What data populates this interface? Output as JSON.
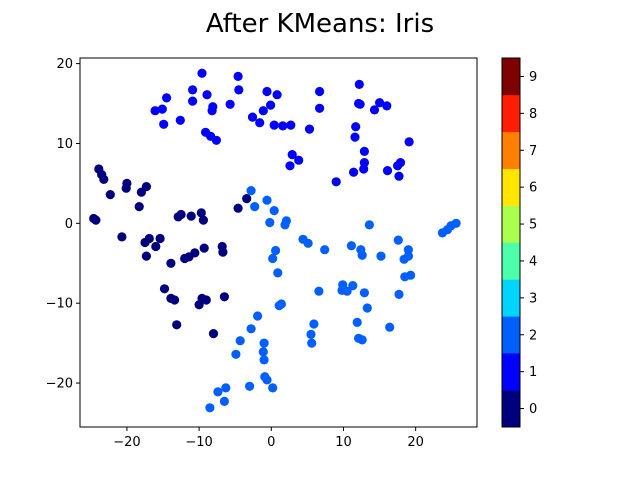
{
  "chart_data": {
    "type": "scatter",
    "title": "After KMeans: Iris",
    "xlabel": "",
    "ylabel": "",
    "xlim": [
      -26.5,
      28.5
    ],
    "ylim": [
      -25.5,
      20.7
    ],
    "xticks": [
      -20,
      -10,
      0,
      10,
      20
    ],
    "yticks": [
      -20,
      -10,
      0,
      10,
      20
    ],
    "grid": false,
    "colormap": "jet (discrete, 10 levels)",
    "colorbar": {
      "ticks": [
        0,
        1,
        2,
        3,
        4,
        5,
        6,
        7,
        8,
        9
      ],
      "colors": [
        "#00007f",
        "#0000ff",
        "#0060ff",
        "#00d4ff",
        "#4cffaa",
        "#aaff4c",
        "#ffe500",
        "#ff7f00",
        "#ff1f00",
        "#7f0000"
      ]
    },
    "points": [
      {
        "x": -24.6,
        "y": 0.6,
        "c": 0
      },
      {
        "x": -24.3,
        "y": 0.4,
        "c": 0
      },
      {
        "x": -23.9,
        "y": 6.8,
        "c": 0
      },
      {
        "x": -23.5,
        "y": 6.1,
        "c": 0
      },
      {
        "x": -23.2,
        "y": 5.5,
        "c": 0
      },
      {
        "x": -22.3,
        "y": 3.6,
        "c": 0
      },
      {
        "x": -20.7,
        "y": -1.7,
        "c": 0
      },
      {
        "x": -20.1,
        "y": 4.4,
        "c": 0
      },
      {
        "x": -20.0,
        "y": 5.0,
        "c": 0
      },
      {
        "x": -18.3,
        "y": 2.1,
        "c": 0
      },
      {
        "x": -18.0,
        "y": 3.9,
        "c": 0
      },
      {
        "x": -17.3,
        "y": 4.6,
        "c": 0
      },
      {
        "x": -17.5,
        "y": -2.4,
        "c": 0
      },
      {
        "x": -17.3,
        "y": -4.1,
        "c": 0
      },
      {
        "x": -16.9,
        "y": -1.9,
        "c": 0
      },
      {
        "x": -16.0,
        "y": -2.9,
        "c": 0
      },
      {
        "x": -15.4,
        "y": -1.9,
        "c": 0
      },
      {
        "x": -14.8,
        "y": -8.2,
        "c": 0
      },
      {
        "x": -13.9,
        "y": -5.0,
        "c": 0
      },
      {
        "x": -13.9,
        "y": -9.4,
        "c": 0
      },
      {
        "x": -13.4,
        "y": -9.6,
        "c": 0
      },
      {
        "x": -13.1,
        "y": -12.7,
        "c": 0
      },
      {
        "x": -12.9,
        "y": 0.8,
        "c": 0
      },
      {
        "x": -12.5,
        "y": 1.1,
        "c": 0
      },
      {
        "x": -12.0,
        "y": -4.4,
        "c": 0
      },
      {
        "x": -11.4,
        "y": -4.2,
        "c": 0
      },
      {
        "x": -11.1,
        "y": 0.9,
        "c": 0
      },
      {
        "x": -10.6,
        "y": -3.7,
        "c": 0
      },
      {
        "x": -10.0,
        "y": -10.2,
        "c": 0
      },
      {
        "x": -9.7,
        "y": 1.3,
        "c": 0
      },
      {
        "x": -9.6,
        "y": -9.4,
        "c": 0
      },
      {
        "x": -9.4,
        "y": 0.4,
        "c": 0
      },
      {
        "x": -9.3,
        "y": -3.1,
        "c": 0
      },
      {
        "x": -9.0,
        "y": -9.6,
        "c": 0
      },
      {
        "x": -8.0,
        "y": -13.8,
        "c": 0
      },
      {
        "x": -6.8,
        "y": -2.9,
        "c": 0
      },
      {
        "x": -6.7,
        "y": -3.6,
        "c": 0
      },
      {
        "x": -6.5,
        "y": -9.2,
        "c": 0
      },
      {
        "x": -4.6,
        "y": 1.9,
        "c": 0
      },
      {
        "x": -3.4,
        "y": 3.1,
        "c": 0
      },
      {
        "x": -16.1,
        "y": 14.1,
        "c": 1
      },
      {
        "x": -15.1,
        "y": 14.3,
        "c": 1
      },
      {
        "x": -14.5,
        "y": 15.7,
        "c": 1
      },
      {
        "x": -14.9,
        "y": 12.4,
        "c": 1
      },
      {
        "x": -12.6,
        "y": 12.9,
        "c": 1
      },
      {
        "x": -10.9,
        "y": 16.7,
        "c": 1
      },
      {
        "x": -10.9,
        "y": 15.3,
        "c": 1
      },
      {
        "x": -9.6,
        "y": 18.8,
        "c": 1
      },
      {
        "x": -8.9,
        "y": 16.1,
        "c": 1
      },
      {
        "x": -9.1,
        "y": 11.4,
        "c": 1
      },
      {
        "x": -8.4,
        "y": 10.9,
        "c": 1
      },
      {
        "x": -8.2,
        "y": 14.1,
        "c": 1
      },
      {
        "x": -8.1,
        "y": 14.6,
        "c": 1
      },
      {
        "x": -7.6,
        "y": 10.4,
        "c": 1
      },
      {
        "x": -5.7,
        "y": 14.9,
        "c": 1
      },
      {
        "x": -4.6,
        "y": 18.4,
        "c": 1
      },
      {
        "x": -4.5,
        "y": 16.7,
        "c": 1
      },
      {
        "x": -2.6,
        "y": 13.3,
        "c": 1
      },
      {
        "x": -1.6,
        "y": 12.6,
        "c": 1
      },
      {
        "x": -1.1,
        "y": 14.1,
        "c": 1
      },
      {
        "x": -0.6,
        "y": 16.5,
        "c": 1
      },
      {
        "x": -0.1,
        "y": 14.8,
        "c": 1
      },
      {
        "x": 0.4,
        "y": 12.3,
        "c": 1
      },
      {
        "x": 0.8,
        "y": 16.1,
        "c": 1
      },
      {
        "x": 1.6,
        "y": 12.2,
        "c": 1
      },
      {
        "x": 2.7,
        "y": 12.3,
        "c": 1
      },
      {
        "x": 2.6,
        "y": 7.2,
        "c": 1
      },
      {
        "x": 2.9,
        "y": 8.6,
        "c": 1
      },
      {
        "x": 3.8,
        "y": 7.9,
        "c": 1
      },
      {
        "x": 5.3,
        "y": 11.8,
        "c": 1
      },
      {
        "x": 6.7,
        "y": 16.5,
        "c": 1
      },
      {
        "x": 6.7,
        "y": 14.4,
        "c": 1
      },
      {
        "x": 9.0,
        "y": 5.2,
        "c": 1
      },
      {
        "x": 11.4,
        "y": 6.4,
        "c": 1
      },
      {
        "x": 11.7,
        "y": 12.1,
        "c": 1
      },
      {
        "x": 11.6,
        "y": 10.8,
        "c": 1
      },
      {
        "x": 12.1,
        "y": 15.0,
        "c": 1
      },
      {
        "x": 12.3,
        "y": 14.9,
        "c": 1
      },
      {
        "x": 12.2,
        "y": 17.4,
        "c": 1
      },
      {
        "x": 12.9,
        "y": 9.0,
        "c": 1
      },
      {
        "x": 12.9,
        "y": 7.6,
        "c": 1
      },
      {
        "x": 12.8,
        "y": 6.8,
        "c": 1
      },
      {
        "x": 14.3,
        "y": 14.2,
        "c": 1
      },
      {
        "x": 15.0,
        "y": 15.1,
        "c": 1
      },
      {
        "x": 16.0,
        "y": 14.7,
        "c": 1
      },
      {
        "x": 16.1,
        "y": 6.6,
        "c": 1
      },
      {
        "x": 17.5,
        "y": 7.2,
        "c": 1
      },
      {
        "x": 17.9,
        "y": 7.6,
        "c": 1
      },
      {
        "x": 17.7,
        "y": 5.9,
        "c": 1
      },
      {
        "x": 19.1,
        "y": 10.2,
        "c": 1
      },
      {
        "x": -2.8,
        "y": 4.1,
        "c": 2
      },
      {
        "x": -2.3,
        "y": 2.1,
        "c": 2
      },
      {
        "x": -0.6,
        "y": 2.9,
        "c": 2
      },
      {
        "x": -0.2,
        "y": 0.1,
        "c": 2
      },
      {
        "x": 0.4,
        "y": 1.6,
        "c": 2
      },
      {
        "x": 0.2,
        "y": -4.4,
        "c": 2
      },
      {
        "x": 0.6,
        "y": -3.4,
        "c": 2
      },
      {
        "x": 0.9,
        "y": -6.2,
        "c": 2
      },
      {
        "x": 1.1,
        "y": -10.3,
        "c": 2
      },
      {
        "x": 1.4,
        "y": -10.1,
        "c": 2
      },
      {
        "x": 1.9,
        "y": -0.2,
        "c": 2
      },
      {
        "x": 2.1,
        "y": 0.3,
        "c": 2
      },
      {
        "x": 4.4,
        "y": -2.0,
        "c": 2
      },
      {
        "x": 5.1,
        "y": -2.5,
        "c": 2
      },
      {
        "x": 5.5,
        "y": -13.9,
        "c": 2
      },
      {
        "x": 5.6,
        "y": -15.0,
        "c": 2
      },
      {
        "x": 5.9,
        "y": -12.6,
        "c": 2
      },
      {
        "x": 6.6,
        "y": -8.5,
        "c": 2
      },
      {
        "x": 7.4,
        "y": -3.3,
        "c": 2
      },
      {
        "x": 9.8,
        "y": -8.4,
        "c": 2
      },
      {
        "x": 9.9,
        "y": -7.7,
        "c": 2
      },
      {
        "x": 10.5,
        "y": -8.5,
        "c": 2
      },
      {
        "x": 11.1,
        "y": -2.8,
        "c": 2
      },
      {
        "x": 11.3,
        "y": -7.8,
        "c": 2
      },
      {
        "x": 11.9,
        "y": -12.4,
        "c": 2
      },
      {
        "x": 12.1,
        "y": -14.4,
        "c": 2
      },
      {
        "x": 12.6,
        "y": -14.6,
        "c": 2
      },
      {
        "x": 12.4,
        "y": -3.3,
        "c": 2
      },
      {
        "x": 12.6,
        "y": -4.0,
        "c": 2
      },
      {
        "x": 12.9,
        "y": -8.7,
        "c": 2
      },
      {
        "x": 13.3,
        "y": -10.6,
        "c": 2
      },
      {
        "x": 13.6,
        "y": -0.2,
        "c": 2
      },
      {
        "x": 15.2,
        "y": -4.1,
        "c": 2
      },
      {
        "x": 16.4,
        "y": -13.0,
        "c": 2
      },
      {
        "x": 17.6,
        "y": -2.1,
        "c": 2
      },
      {
        "x": 17.7,
        "y": -8.9,
        "c": 2
      },
      {
        "x": 18.4,
        "y": -4.5,
        "c": 2
      },
      {
        "x": 18.5,
        "y": -6.7,
        "c": 2
      },
      {
        "x": 19.0,
        "y": -3.3,
        "c": 2
      },
      {
        "x": 19.0,
        "y": -4.1,
        "c": 2
      },
      {
        "x": 19.3,
        "y": -6.5,
        "c": 2
      },
      {
        "x": 23.7,
        "y": -1.2,
        "c": 2
      },
      {
        "x": 24.4,
        "y": -0.8,
        "c": 2
      },
      {
        "x": 24.9,
        "y": -0.3,
        "c": 2
      },
      {
        "x": 25.6,
        "y": 0.0,
        "c": 2
      },
      {
        "x": -4.9,
        "y": -16.4,
        "c": 2
      },
      {
        "x": -4.3,
        "y": -14.7,
        "c": 2
      },
      {
        "x": -3.0,
        "y": -20.4,
        "c": 2
      },
      {
        "x": -2.8,
        "y": -13.2,
        "c": 2
      },
      {
        "x": -1.9,
        "y": -11.6,
        "c": 2
      },
      {
        "x": -1.0,
        "y": -15.0,
        "c": 2
      },
      {
        "x": -1.1,
        "y": -16.1,
        "c": 2
      },
      {
        "x": -1.0,
        "y": -17.1,
        "c": 2
      },
      {
        "x": -0.9,
        "y": -19.2,
        "c": 2
      },
      {
        "x": -0.6,
        "y": -19.6,
        "c": 2
      },
      {
        "x": 0.2,
        "y": -20.6,
        "c": 2
      },
      {
        "x": -6.3,
        "y": -20.6,
        "c": 2
      },
      {
        "x": -7.4,
        "y": -21.1,
        "c": 2
      },
      {
        "x": -6.5,
        "y": -22.3,
        "c": 2
      },
      {
        "x": -8.5,
        "y": -23.1,
        "c": 2
      }
    ]
  }
}
